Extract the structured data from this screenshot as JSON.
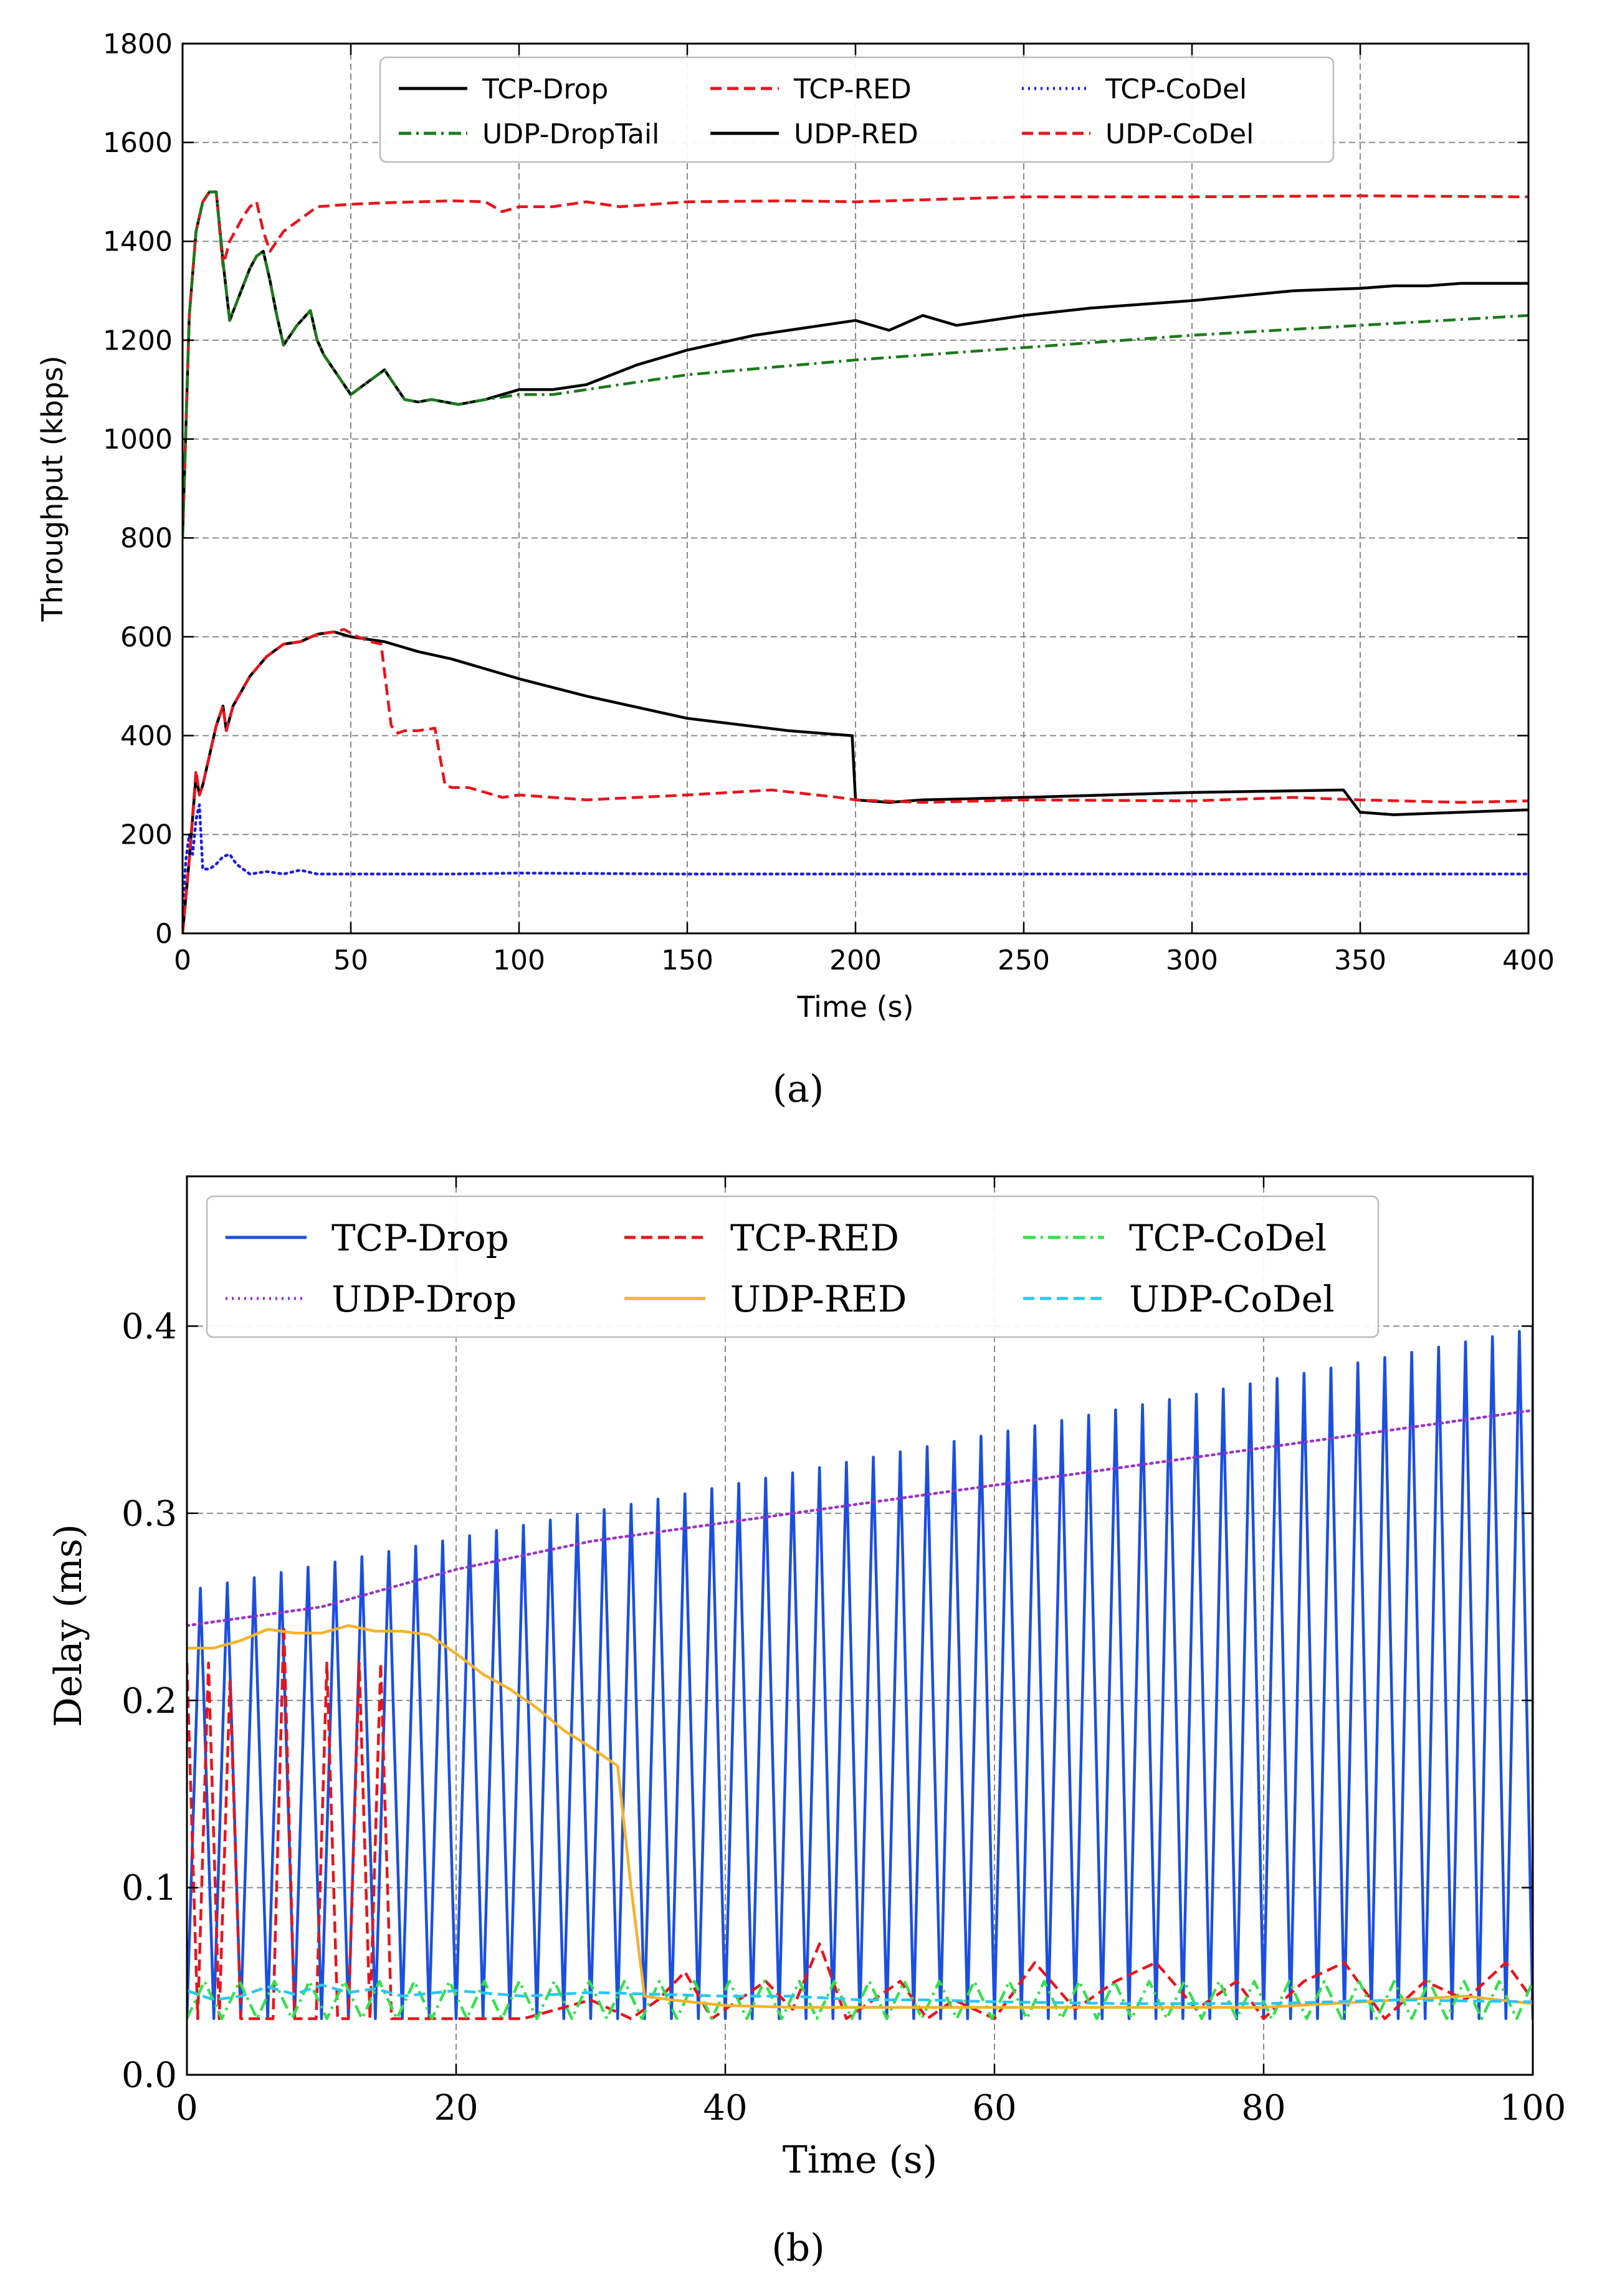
{
  "chart_data": [
    {
      "type": "line",
      "panel_label": "(a)",
      "xlabel": "Time (s)",
      "ylabel": "Throughput (kbps)",
      "xlim": [
        0,
        400
      ],
      "ylim": [
        0,
        1800
      ],
      "xticks": [
        "0",
        "50",
        "100",
        "150",
        "200",
        "250",
        "300",
        "350",
        "400"
      ],
      "yticks": [
        "0",
        "200",
        "400",
        "600",
        "800",
        "1000",
        "1200",
        "1400",
        "1600",
        "1800"
      ],
      "grid": true,
      "legend_position": "top, 3 columns",
      "series": [
        {
          "name": "TCP-Drop",
          "color": "#000000",
          "style": "solid",
          "x": [
            0,
            2,
            4,
            6,
            8,
            10,
            12,
            14,
            18,
            20,
            22,
            24,
            26,
            28,
            30,
            34,
            38,
            40,
            42,
            46,
            50,
            54,
            60,
            64,
            66,
            70,
            74,
            78,
            82,
            86,
            90,
            100,
            110,
            120,
            135,
            150,
            170,
            190,
            200,
            210,
            220,
            230,
            250,
            270,
            300,
            330,
            350,
            360,
            370,
            380,
            390,
            400
          ],
          "y": [
            800,
            1250,
            1420,
            1480,
            1500,
            1500,
            1360,
            1240,
            1310,
            1345,
            1370,
            1380,
            1320,
            1250,
            1190,
            1230,
            1260,
            1200,
            1170,
            1130,
            1090,
            1110,
            1140,
            1100,
            1080,
            1075,
            1080,
            1075,
            1070,
            1075,
            1080,
            1100,
            1100,
            1110,
            1150,
            1180,
            1210,
            1230,
            1240,
            1220,
            1250,
            1230,
            1250,
            1265,
            1280,
            1300,
            1305,
            1310,
            1310,
            1315,
            1315,
            1315
          ]
        },
        {
          "name": "TCP-RED",
          "color": "#e8141b",
          "style": "dashed",
          "x": [
            0,
            2,
            4,
            6,
            8,
            10,
            12,
            14,
            18,
            20,
            22,
            24,
            26,
            30,
            40,
            50,
            60,
            70,
            80,
            90,
            95,
            100,
            110,
            120,
            130,
            150,
            180,
            200,
            250,
            300,
            350,
            400
          ],
          "y": [
            800,
            1250,
            1420,
            1480,
            1500,
            1500,
            1350,
            1400,
            1450,
            1470,
            1480,
            1420,
            1380,
            1420,
            1470,
            1475,
            1478,
            1480,
            1482,
            1480,
            1460,
            1470,
            1470,
            1480,
            1470,
            1480,
            1482,
            1480,
            1490,
            1490,
            1492,
            1490
          ]
        },
        {
          "name": "TCP-CoDel",
          "color": "#1a1aee",
          "style": "dotted",
          "x": [
            0,
            1,
            2,
            3,
            4,
            5,
            6,
            8,
            10,
            12,
            14,
            16,
            18,
            20,
            25,
            30,
            35,
            40,
            50,
            60,
            80,
            100,
            150,
            200,
            250,
            300,
            350,
            400
          ],
          "y": [
            50,
            150,
            200,
            160,
            230,
            260,
            130,
            130,
            140,
            155,
            160,
            140,
            130,
            120,
            125,
            120,
            128,
            120,
            120,
            120,
            120,
            122,
            120,
            120,
            120,
            120,
            120,
            120
          ]
        },
        {
          "name": "UDP-DropTail",
          "color": "#1a7a1a",
          "style": "dashdot",
          "x": [
            0,
            2,
            4,
            6,
            8,
            10,
            12,
            14,
            18,
            20,
            22,
            24,
            26,
            28,
            30,
            34,
            38,
            40,
            42,
            46,
            50,
            54,
            60,
            64,
            66,
            70,
            74,
            78,
            82,
            86,
            90,
            100,
            110,
            120,
            150,
            200,
            250,
            300,
            350,
            400
          ],
          "y": [
            800,
            1250,
            1420,
            1480,
            1500,
            1500,
            1360,
            1240,
            1310,
            1345,
            1370,
            1380,
            1320,
            1250,
            1190,
            1230,
            1260,
            1200,
            1170,
            1130,
            1090,
            1110,
            1140,
            1100,
            1080,
            1075,
            1080,
            1075,
            1070,
            1075,
            1080,
            1090,
            1090,
            1100,
            1130,
            1160,
            1185,
            1210,
            1230,
            1250
          ]
        },
        {
          "name": "UDP-RED",
          "color": "#000000",
          "style": "solid",
          "x": [
            0,
            2,
            4,
            5,
            6,
            8,
            10,
            12,
            13,
            15,
            20,
            25,
            30,
            35,
            40,
            45,
            50,
            55,
            60,
            70,
            80,
            100,
            120,
            150,
            180,
            199,
            200,
            210,
            220,
            250,
            300,
            345,
            350,
            360,
            380,
            400
          ],
          "y": [
            0,
            150,
            320,
            280,
            300,
            360,
            420,
            460,
            410,
            460,
            520,
            560,
            585,
            590,
            605,
            610,
            600,
            595,
            590,
            570,
            555,
            515,
            480,
            435,
            410,
            400,
            270,
            265,
            270,
            275,
            285,
            290,
            245,
            240,
            245,
            250
          ]
        },
        {
          "name": "UDP-CoDel",
          "color": "#e8141b",
          "style": "dashed",
          "x": [
            0,
            2,
            4,
            5,
            6,
            8,
            10,
            12,
            13,
            15,
            20,
            25,
            30,
            35,
            40,
            45,
            48,
            52,
            56,
            59,
            62,
            64,
            66,
            70,
            75,
            78,
            80,
            85,
            90,
            95,
            100,
            120,
            150,
            175,
            195,
            200,
            220,
            250,
            300,
            330,
            350,
            380,
            400
          ],
          "y": [
            0,
            150,
            330,
            280,
            300,
            360,
            420,
            460,
            410,
            460,
            520,
            560,
            585,
            590,
            605,
            610,
            615,
            600,
            590,
            585,
            420,
            405,
            410,
            410,
            415,
            300,
            295,
            295,
            285,
            275,
            280,
            270,
            280,
            290,
            275,
            270,
            265,
            270,
            268,
            275,
            270,
            265,
            268
          ]
        }
      ]
    },
    {
      "type": "line",
      "panel_label": "(b)",
      "xlabel": "Time (s)",
      "ylabel": "Delay (ms)",
      "xlim": [
        0,
        100
      ],
      "ylim": [
        0,
        0.48
      ],
      "xticks": [
        "0",
        "20",
        "40",
        "60",
        "80",
        "100"
      ],
      "yticks": [
        "0.0",
        "0.1",
        "0.2",
        "0.3",
        "0.4"
      ],
      "grid": true,
      "legend_position": "top, 3 columns",
      "series": [
        {
          "name": "TCP-Drop",
          "color": "#1a4fe0",
          "style": "solid",
          "pattern": "sawtooth",
          "start": 0,
          "end": 100,
          "period": 2.0,
          "low": 0.03,
          "peak_start": 0.26,
          "peak_end": 0.4
        },
        {
          "name": "TCP-RED",
          "color": "#e8141b",
          "style": "dashed",
          "x": [
            0,
            0.8,
            1.6,
            2.4,
            3.2,
            4.0,
            4.8,
            5.6,
            6.4,
            7.2,
            8.0,
            8.8,
            9.6,
            10.4,
            11.2,
            12.0,
            12.8,
            13.6,
            14.4,
            15.2,
            16,
            20,
            25,
            30,
            33,
            35,
            37,
            39,
            41,
            43,
            45,
            47,
            49,
            51,
            53,
            55,
            57,
            60,
            63,
            66,
            69,
            72,
            75,
            78,
            80,
            83,
            86,
            89,
            92,
            95,
            98,
            100
          ],
          "y": [
            0.22,
            0.03,
            0.22,
            0.03,
            0.21,
            0.03,
            0.03,
            0.03,
            0.03,
            0.24,
            0.03,
            0.03,
            0.03,
            0.22,
            0.03,
            0.03,
            0.22,
            0.03,
            0.22,
            0.03,
            0.03,
            0.03,
            0.03,
            0.04,
            0.03,
            0.04,
            0.055,
            0.03,
            0.04,
            0.05,
            0.035,
            0.07,
            0.03,
            0.04,
            0.05,
            0.03,
            0.04,
            0.03,
            0.06,
            0.035,
            0.05,
            0.06,
            0.035,
            0.05,
            0.03,
            0.05,
            0.06,
            0.03,
            0.05,
            0.04,
            0.06,
            0.04
          ]
        },
        {
          "name": "TCP-CoDel",
          "color": "#33e14a",
          "style": "dashdot",
          "pattern": "zigzag",
          "start": 0,
          "end": 100,
          "period": 2.6,
          "low": 0.03,
          "high": 0.05
        },
        {
          "name": "UDP-Drop",
          "color": "#9932cc",
          "style": "dotted",
          "x": [
            0,
            10,
            20,
            30,
            40,
            50,
            60,
            70,
            80,
            90,
            100
          ],
          "y": [
            0.24,
            0.25,
            0.27,
            0.285,
            0.295,
            0.305,
            0.315,
            0.325,
            0.335,
            0.345,
            0.355
          ]
        },
        {
          "name": "UDP-RED",
          "color": "#f5b32a",
          "style": "solid",
          "x": [
            0,
            2,
            4,
            6,
            8,
            10,
            12,
            14,
            16,
            18,
            20,
            22,
            24,
            26,
            28,
            30,
            32,
            33,
            34,
            36,
            40,
            45,
            50,
            60,
            70,
            80,
            85,
            90,
            95,
            100
          ],
          "y": [
            0.228,
            0.228,
            0.232,
            0.238,
            0.236,
            0.236,
            0.24,
            0.237,
            0.237,
            0.235,
            0.225,
            0.214,
            0.206,
            0.196,
            0.184,
            0.175,
            0.165,
            0.1,
            0.042,
            0.04,
            0.037,
            0.036,
            0.036,
            0.036,
            0.036,
            0.036,
            0.038,
            0.04,
            0.042,
            0.038
          ]
        },
        {
          "name": "UDP-CoDel",
          "color": "#29c8ee",
          "style": "dashed",
          "x": [
            0,
            2,
            4,
            6,
            8,
            10,
            12,
            14,
            16,
            20,
            25,
            30,
            35,
            40,
            45,
            50,
            55,
            60,
            70,
            80,
            90,
            100
          ],
          "y": [
            0.045,
            0.04,
            0.042,
            0.047,
            0.043,
            0.048,
            0.044,
            0.046,
            0.042,
            0.045,
            0.042,
            0.044,
            0.043,
            0.042,
            0.042,
            0.04,
            0.04,
            0.039,
            0.038,
            0.038,
            0.04,
            0.039
          ]
        }
      ]
    }
  ]
}
